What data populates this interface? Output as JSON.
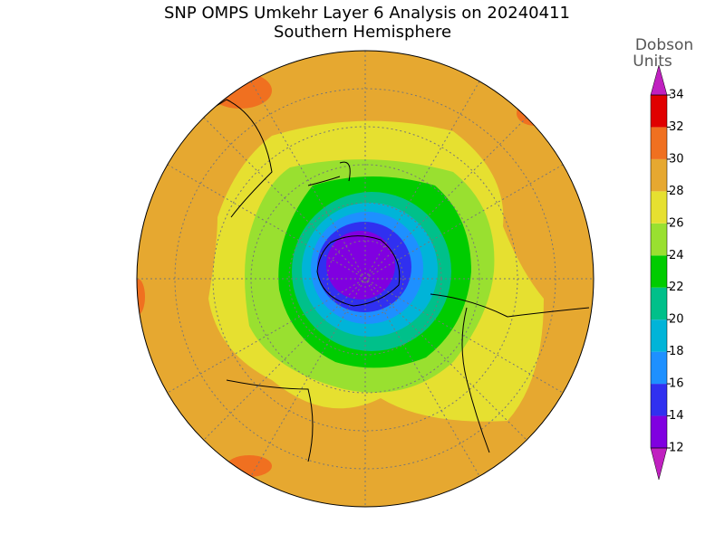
{
  "title": [
    "SNP OMPS Umkehr Layer 6 Analysis on 20240411",
    "Southern Hemisphere"
  ],
  "colorbar": {
    "label": [
      "Dobson",
      "Units"
    ],
    "ticks": [
      12,
      14,
      16,
      18,
      20,
      22,
      24,
      26,
      28,
      30,
      32,
      34
    ],
    "colors": [
      "#c020c0",
      "#8000e0",
      "#3030f0",
      "#1e90ff",
      "#00b4d8",
      "#00c08a",
      "#00cc00",
      "#99e030",
      "#e6e030",
      "#e6a830",
      "#f07020",
      "#e00000",
      "#c020c0"
    ]
  }
}
